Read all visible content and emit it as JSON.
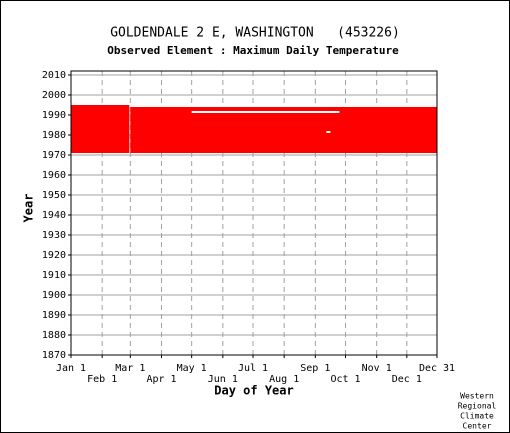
{
  "chart_data": {
    "type": "range",
    "title": "GOLDENDALE 2 E, WASHINGTON   (453226)",
    "subtitle": "Observed Element : Maximum Daily Temperature",
    "y_label": "Year",
    "x_label": "Day of Year",
    "footer": [
      "Western",
      "Regional",
      "Climate",
      "Center"
    ],
    "color": "#ff0000",
    "gap_color": "#ffffff",
    "xlim": [
      1,
      365
    ],
    "ylim": [
      1870,
      2012
    ],
    "xticks": [
      {
        "value": 1,
        "label": "Jan 1"
      },
      {
        "value": 32,
        "label": "Feb 1"
      },
      {
        "value": 60,
        "label": "Mar 1"
      },
      {
        "value": 91,
        "label": "Apr 1"
      },
      {
        "value": 121,
        "label": "May 1"
      },
      {
        "value": 152,
        "label": "Jun 1"
      },
      {
        "value": 182,
        "label": "Jul 1"
      },
      {
        "value": 213,
        "label": "Aug 1"
      },
      {
        "value": 244,
        "label": "Sep 1"
      },
      {
        "value": 274,
        "label": "Oct 1"
      },
      {
        "value": 305,
        "label": "Nov 1"
      },
      {
        "value": 335,
        "label": "Dec 1"
      },
      {
        "value": 365,
        "label": "Dec 31"
      }
    ],
    "yticks": [
      1870,
      1880,
      1890,
      1900,
      1910,
      1920,
      1930,
      1940,
      1950,
      1960,
      1970,
      1980,
      1990,
      2000,
      2010
    ],
    "grid": true,
    "ranges": [
      {
        "start_day": 1,
        "end_day": 59,
        "start_year": 1971,
        "end_year": 1995
      },
      {
        "start_day": 60,
        "end_day": 365,
        "start_year": 1971,
        "end_year": 1994
      }
    ],
    "gaps": [
      {
        "start_day": 121,
        "end_day": 268,
        "start_year": 1991,
        "end_year": 1992
      },
      {
        "start_day": 255,
        "end_day": 259,
        "start_year": 1981,
        "end_year": 1982
      }
    ]
  }
}
